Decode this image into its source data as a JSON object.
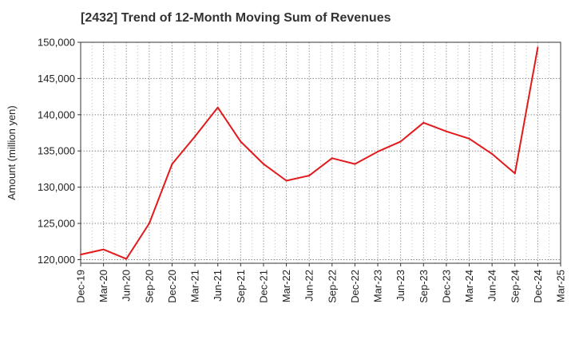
{
  "chart_data": {
    "type": "line",
    "title": "[2432]  Trend of 12-Month Moving Sum of Revenues",
    "ylabel": "Amount (million yen)",
    "xlabel": "",
    "ylim": [
      119500,
      150000
    ],
    "yticks": [
      120000,
      125000,
      130000,
      135000,
      140000,
      145000,
      150000
    ],
    "ytick_labels": [
      "120,000",
      "125,000",
      "130,000",
      "135,000",
      "140,000",
      "145,000",
      "150,000"
    ],
    "x": [
      "Dec-19",
      "Mar-20",
      "Jun-20",
      "Sep-20",
      "Dec-20",
      "Mar-21",
      "Jun-21",
      "Sep-21",
      "Dec-21",
      "Mar-22",
      "Jun-22",
      "Sep-22",
      "Dec-22",
      "Mar-23",
      "Jun-23",
      "Sep-23",
      "Dec-23",
      "Mar-24",
      "Jun-24",
      "Sep-24",
      "Dec-24",
      "Mar-25"
    ],
    "series": [
      {
        "values": [
          120700,
          121400,
          120100,
          125000,
          133200,
          137000,
          141000,
          136300,
          133200,
          130900,
          131600,
          134000,
          133200,
          134900,
          136300,
          138900,
          137700,
          136700,
          134600,
          131900,
          149300,
          null
        ]
      }
    ],
    "line_color": "#e31a1c",
    "grid": true,
    "legend": "none"
  }
}
